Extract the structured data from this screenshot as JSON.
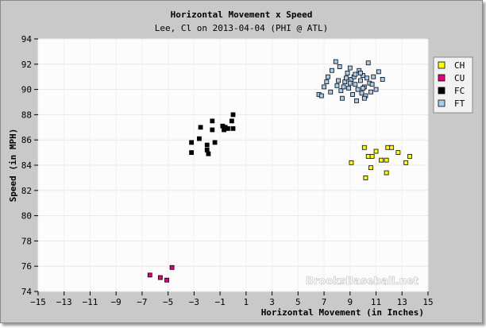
{
  "chart_data": {
    "type": "scatter",
    "title": "Horizontal Movement x Speed",
    "subtitle": "Lee, Cl on 2013-04-04 (PHI @ ATL)",
    "xlabel": "Horizontal Movement (in Inches)",
    "ylabel": "Speed (in MPH)",
    "xlim": [
      -15,
      15
    ],
    "ylim": [
      74,
      94
    ],
    "x_ticks": [
      -15,
      -13,
      -11,
      -9,
      -7,
      -5,
      -3,
      -1,
      1,
      3,
      5,
      7,
      9,
      11,
      13,
      15
    ],
    "y_ticks": [
      74,
      76,
      78,
      80,
      82,
      84,
      86,
      88,
      90,
      92,
      94
    ],
    "grid": true,
    "legend_position": "right",
    "watermark": "BrooksBaseball.net",
    "series": [
      {
        "name": "CH",
        "color": "#ffff00",
        "points": [
          [
            9.1,
            84.2
          ],
          [
            10.1,
            85.4
          ],
          [
            10.4,
            84.7
          ],
          [
            10.7,
            84.7
          ],
          [
            11.4,
            84.4
          ],
          [
            11.8,
            84.4
          ],
          [
            11.9,
            85.4
          ],
          [
            12.2,
            85.4
          ],
          [
            12.7,
            85.0
          ],
          [
            13.3,
            84.2
          ],
          [
            13.6,
            84.7
          ],
          [
            10.2,
            83.0
          ],
          [
            10.6,
            83.8
          ],
          [
            11.8,
            83.4
          ],
          [
            11.0,
            85.1
          ]
        ]
      },
      {
        "name": "CU",
        "color": "#e6007e",
        "points": [
          [
            -6.4,
            75.3
          ],
          [
            -5.6,
            75.1
          ],
          [
            -4.7,
            75.9
          ],
          [
            -5.1,
            74.9
          ]
        ]
      },
      {
        "name": "FC",
        "color": "#000000",
        "points": [
          [
            -3.2,
            85.8
          ],
          [
            -3.2,
            85.0
          ],
          [
            -2.6,
            86.1
          ],
          [
            -2.5,
            87.0
          ],
          [
            -2.0,
            85.6
          ],
          [
            -2.0,
            85.2
          ],
          [
            -1.9,
            84.9
          ],
          [
            -1.6,
            86.8
          ],
          [
            -1.6,
            87.5
          ],
          [
            -1.4,
            85.8
          ],
          [
            -0.8,
            87.1
          ],
          [
            -0.7,
            86.8
          ],
          [
            -0.6,
            87.0
          ],
          [
            -0.4,
            86.9
          ],
          [
            -0.1,
            87.5
          ],
          [
            0.0,
            88.0
          ],
          [
            0.0,
            86.9
          ]
        ]
      },
      {
        "name": "FT",
        "color": "#a9cdf0",
        "points": [
          [
            6.6,
            89.6
          ],
          [
            6.8,
            89.5
          ],
          [
            7.2,
            90.6
          ],
          [
            7.3,
            91.0
          ],
          [
            7.6,
            91.5
          ],
          [
            7.5,
            89.8
          ],
          [
            7.9,
            92.2
          ],
          [
            8.0,
            90.3
          ],
          [
            8.2,
            91.8
          ],
          [
            8.3,
            89.9
          ],
          [
            8.4,
            89.3
          ],
          [
            8.6,
            90.6
          ],
          [
            8.8,
            91.3
          ],
          [
            8.9,
            90.1
          ],
          [
            9.0,
            91.7
          ],
          [
            9.1,
            90.8
          ],
          [
            9.3,
            91.0
          ],
          [
            9.4,
            90.4
          ],
          [
            9.5,
            89.1
          ],
          [
            9.6,
            90.0
          ],
          [
            9.7,
            91.5
          ],
          [
            9.8,
            90.7
          ],
          [
            9.9,
            89.7
          ],
          [
            10.0,
            91.1
          ],
          [
            10.1,
            90.2
          ],
          [
            10.2,
            89.5
          ],
          [
            10.3,
            90.9
          ],
          [
            10.4,
            92.1
          ],
          [
            10.5,
            90.5
          ],
          [
            10.6,
            89.8
          ],
          [
            10.8,
            91.0
          ],
          [
            11.0,
            90.0
          ],
          [
            11.2,
            91.4
          ],
          [
            11.5,
            90.8
          ],
          [
            8.1,
            90.7
          ],
          [
            9.2,
            89.6
          ],
          [
            10.0,
            90.1
          ],
          [
            8.7,
            90.9
          ],
          [
            7.0,
            90.2
          ],
          [
            9.8,
            91.3
          ],
          [
            10.7,
            90.4
          ],
          [
            9.4,
            91.2
          ],
          [
            8.5,
            90.2
          ],
          [
            10.1,
            89.3
          ],
          [
            9.0,
            90.5
          ]
        ]
      }
    ]
  }
}
